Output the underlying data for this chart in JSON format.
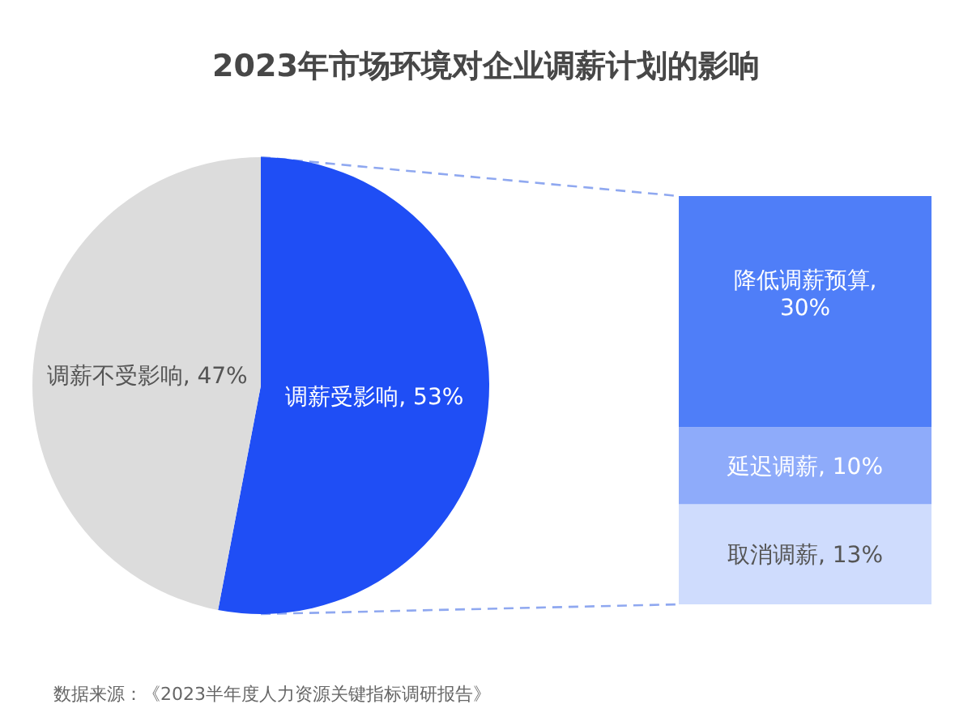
{
  "chart_data": [
    {
      "type": "pie",
      "title": "2023年市场环境对企业调薪计划的影响",
      "categories": [
        "调薪受影响",
        "调薪不受影响"
      ],
      "values": [
        53,
        47
      ],
      "colors": [
        "#1f4ef5",
        "#dcdcdc"
      ],
      "value_labels": [
        "53%",
        "47%"
      ],
      "annotations": [
        "数据来源：《2023半年度人力资源关键指标调研报告》"
      ]
    },
    {
      "type": "bar",
      "stacked": true,
      "tick_labels": false,
      "categories": [
        null
      ],
      "series": [
        {
          "name": "取消调薪,",
          "color": "#cfdcfd",
          "values": [
            13
          ],
          "value_labels": [
            "13%"
          ]
        },
        {
          "name": "延迟调薪,",
          "color": "#8eabfa",
          "values": [
            10
          ],
          "value_labels": [
            "10%"
          ]
        },
        {
          "name": "降低调薪预算,",
          "color": "#4f7ef8",
          "values": [
            30
          ],
          "value_labels": [
            "30%"
          ]
        }
      ]
    }
  ]
}
